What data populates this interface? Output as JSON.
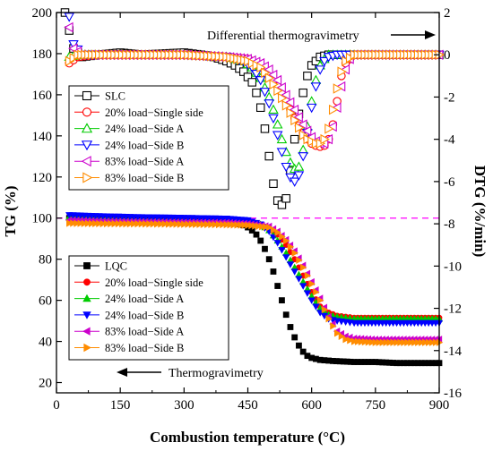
{
  "chart_data": {
    "type": "scatter",
    "xlabel": "Combustion temperature (°C)",
    "ylabel_left": "TG (%)",
    "ylabel_right": "DTG (%/min)",
    "xlim": [
      0,
      900
    ],
    "ylim_left": [
      15,
      200
    ],
    "ylim_right": [
      -16,
      2
    ],
    "x_ticks": [
      "0",
      "150",
      "300",
      "450",
      "600",
      "750",
      "900"
    ],
    "y_left_ticks": [
      "20",
      "40",
      "60",
      "80",
      "100",
      "120",
      "140",
      "160",
      "180",
      "200"
    ],
    "y_right_ticks": [
      "-16",
      "-14",
      "-12",
      "-10",
      "-8",
      "-6",
      "-4",
      "-2",
      "0",
      "2"
    ],
    "grid": false,
    "reference_line": {
      "axis": "left",
      "value": 100,
      "color": "#ff00ff",
      "style": "dashed"
    },
    "annotations": [
      {
        "text": "Differential thermogravimetry",
        "arrow": "right"
      },
      {
        "text": "Thermogravimetry",
        "arrow": "left"
      }
    ],
    "legend_dtg": {
      "placement": "upper-left",
      "entries": [
        {
          "label": "SLC",
          "color": "#000000",
          "marker": "square-open"
        },
        {
          "label": "20% load−Single side",
          "color": "#ff0000",
          "marker": "circle-open"
        },
        {
          "label": "24% load−Side A",
          "color": "#00cc00",
          "marker": "triangle-up-open"
        },
        {
          "label": "24% load−Side B",
          "color": "#0000ff",
          "marker": "triangle-down-open"
        },
        {
          "label": "83% load−Side A",
          "color": "#cc00cc",
          "marker": "triangle-left-open"
        },
        {
          "label": "83% load−Side B",
          "color": "#ff8c00",
          "marker": "triangle-right-open"
        }
      ]
    },
    "legend_tg": {
      "placement": "lower-left",
      "entries": [
        {
          "label": "LQC",
          "color": "#000000",
          "marker": "square-filled"
        },
        {
          "label": "20% load−Single side",
          "color": "#ff0000",
          "marker": "circle-filled"
        },
        {
          "label": "24% load−Side A",
          "color": "#00cc00",
          "marker": "triangle-up-filled"
        },
        {
          "label": "24% load−Side B",
          "color": "#0000ff",
          "marker": "triangle-down-filled"
        },
        {
          "label": "83% load−Side A",
          "color": "#cc00cc",
          "marker": "triangle-left-filled"
        },
        {
          "label": "83% load−Side B",
          "color": "#ff8c00",
          "marker": "triangle-right-filled"
        }
      ]
    },
    "series": [
      {
        "group": "TG",
        "axis": "left",
        "color": "#000000",
        "marker": "square-filled",
        "x": [
          30,
          100,
          200,
          300,
          350,
          400,
          420,
          440,
          450,
          460,
          470,
          480,
          490,
          500,
          510,
          520,
          530,
          540,
          550,
          560,
          570,
          580,
          590,
          600,
          620,
          650,
          700,
          750,
          800,
          850,
          900
        ],
        "y": [
          100,
          99.5,
          99,
          99,
          99.3,
          98,
          97.5,
          96.5,
          95.5,
          94,
          92,
          89,
          85,
          80,
          74,
          67,
          60,
          53,
          47,
          42,
          38,
          35,
          33,
          32,
          31,
          30.5,
          30,
          30,
          29.5,
          29.5,
          29.5
        ]
      },
      {
        "group": "TG",
        "axis": "left",
        "color": "#ff0000",
        "marker": "circle-filled",
        "x": [
          30,
          100,
          200,
          300,
          400,
          450,
          480,
          500,
          520,
          540,
          560,
          580,
          600,
          620,
          640,
          660,
          680,
          700,
          750,
          800,
          850,
          900
        ],
        "y": [
          99.5,
          99,
          98.5,
          98.2,
          98,
          97.5,
          96.5,
          95,
          92,
          87,
          80,
          72,
          64,
          57,
          54,
          52.5,
          52,
          51.5,
          51.5,
          51.5,
          51.5,
          51.5
        ]
      },
      {
        "group": "TG",
        "axis": "left",
        "color": "#00cc00",
        "marker": "triangle-up-filled",
        "x": [
          30,
          100,
          200,
          300,
          400,
          450,
          480,
          500,
          520,
          540,
          560,
          580,
          600,
          620,
          640,
          660,
          680,
          700,
          750,
          800,
          850,
          900
        ],
        "y": [
          100.5,
          100,
          99.5,
          99.2,
          98.8,
          98.3,
          97,
          94,
          89,
          83,
          76,
          69,
          62,
          56,
          53,
          52,
          51.5,
          51,
          51,
          51,
          51,
          51
        ]
      },
      {
        "group": "TG",
        "axis": "left",
        "color": "#0000ff",
        "marker": "triangle-down-filled",
        "x": [
          30,
          100,
          200,
          300,
          400,
          450,
          480,
          500,
          520,
          540,
          560,
          580,
          600,
          620,
          640,
          660,
          680,
          700,
          750,
          800,
          850,
          900
        ],
        "y": [
          101.5,
          101,
          100.5,
          100.2,
          99.8,
          99,
          97,
          93.5,
          88,
          81,
          74,
          67,
          60,
          54,
          51,
          50,
          49.5,
          49,
          49,
          49,
          49,
          49
        ]
      },
      {
        "group": "TG",
        "axis": "left",
        "color": "#cc00cc",
        "marker": "triangle-left-filled",
        "x": [
          30,
          100,
          200,
          300,
          400,
          450,
          500,
          520,
          540,
          560,
          580,
          600,
          620,
          640,
          660,
          680,
          700,
          750,
          800,
          850,
          900
        ],
        "y": [
          99,
          98.5,
          98.2,
          98,
          97.8,
          97.2,
          96,
          93.5,
          89.5,
          84,
          77,
          69,
          61,
          52,
          45,
          42.5,
          41.5,
          41,
          41,
          41,
          41
        ]
      },
      {
        "group": "TG",
        "axis": "left",
        "color": "#ff8c00",
        "marker": "triangle-right-filled",
        "x": [
          30,
          100,
          200,
          300,
          400,
          450,
          500,
          520,
          540,
          560,
          580,
          600,
          620,
          640,
          660,
          680,
          700,
          750,
          800,
          850,
          900
        ],
        "y": [
          97.5,
          97.3,
          97.2,
          97,
          96.8,
          96.5,
          95.5,
          93,
          89,
          83,
          76,
          68,
          60,
          51,
          44,
          41,
          40,
          39.5,
          39.5,
          39.5,
          39.5
        ]
      },
      {
        "group": "DTG",
        "axis": "right",
        "color": "#000000",
        "marker": "square-open",
        "x": [
          20,
          40,
          60,
          100,
          150,
          200,
          250,
          300,
          340,
          370,
          400,
          420,
          440,
          460,
          470,
          480,
          490,
          500,
          510,
          520,
          530,
          540,
          550,
          560,
          570,
          580,
          590,
          600,
          610,
          620,
          640,
          660,
          700,
          750,
          800,
          850,
          900
        ],
        "y": [
          2,
          0.3,
          -0.1,
          0,
          0.1,
          0,
          0.05,
          0.1,
          0,
          -0.1,
          -0.3,
          -0.5,
          -0.8,
          -1.3,
          -1.8,
          -2.5,
          -3.5,
          -4.8,
          -6.1,
          -6.9,
          -7.1,
          -6.8,
          -5.5,
          -4,
          -2.8,
          -1.8,
          -1,
          -0.5,
          -0.3,
          -0.1,
          0,
          0,
          0,
          0,
          0,
          0,
          0
        ]
      },
      {
        "group": "DTG",
        "axis": "right",
        "color": "#ff0000",
        "marker": "circle-open",
        "x": [
          30,
          50,
          100,
          200,
          300,
          400,
          450,
          480,
          500,
          520,
          540,
          560,
          580,
          590,
          600,
          610,
          620,
          630,
          640,
          650,
          660,
          670,
          680,
          700,
          750,
          800,
          850,
          900
        ],
        "y": [
          -0.4,
          -0.1,
          0,
          0,
          0,
          -0.1,
          -0.2,
          -0.5,
          -0.9,
          -1.5,
          -2.2,
          -3,
          -3.7,
          -4,
          -4.2,
          -4.3,
          -4.35,
          -4.3,
          -4,
          -3.3,
          -2.2,
          -1,
          -0.4,
          0,
          0,
          0,
          0,
          0
        ]
      },
      {
        "group": "DTG",
        "axis": "right",
        "color": "#00cc00",
        "marker": "triangle-up-open",
        "x": [
          30,
          50,
          100,
          200,
          300,
          400,
          440,
          460,
          480,
          500,
          510,
          520,
          530,
          540,
          550,
          560,
          570,
          580,
          590,
          600,
          610,
          620,
          630,
          640,
          660,
          700,
          750,
          800,
          850,
          900
        ],
        "y": [
          -0.1,
          0,
          0,
          0,
          0,
          -0.1,
          -0.3,
          -0.6,
          -1.1,
          -2,
          -2.6,
          -3.3,
          -4,
          -4.6,
          -5.1,
          -5.4,
          -5.3,
          -4.5,
          -3.4,
          -2.2,
          -1.2,
          -0.5,
          -0.2,
          0,
          0,
          0,
          0,
          0,
          0,
          0
        ]
      },
      {
        "group": "DTG",
        "axis": "right",
        "color": "#0000ff",
        "marker": "triangle-down-open",
        "x": [
          30,
          40,
          60,
          100,
          200,
          300,
          400,
          440,
          460,
          480,
          500,
          510,
          520,
          530,
          540,
          550,
          560,
          570,
          580,
          590,
          600,
          610,
          620,
          630,
          640,
          660,
          700,
          750,
          800,
          850,
          900
        ],
        "y": [
          1.8,
          0.5,
          0,
          0,
          0,
          0,
          -0.1,
          -0.3,
          -0.6,
          -1.2,
          -2.3,
          -3,
          -3.8,
          -4.6,
          -5.3,
          -5.8,
          -6,
          -5.7,
          -4.8,
          -3.7,
          -2.5,
          -1.5,
          -0.7,
          -0.3,
          -0.1,
          0,
          0,
          0,
          0,
          0,
          0
        ]
      },
      {
        "group": "DTG",
        "axis": "right",
        "color": "#cc00cc",
        "marker": "triangle-left-open",
        "x": [
          30,
          40,
          60,
          100,
          200,
          300,
          400,
          450,
          480,
          500,
          520,
          540,
          560,
          580,
          590,
          600,
          610,
          620,
          630,
          640,
          650,
          660,
          670,
          680,
          690,
          700,
          750,
          800,
          850,
          900
        ],
        "y": [
          1.3,
          0.3,
          0,
          0,
          0,
          0,
          -0.1,
          -0.2,
          -0.4,
          -0.7,
          -1.2,
          -1.9,
          -2.6,
          -3.3,
          -3.6,
          -3.9,
          -4.1,
          -4.2,
          -4.2,
          -4,
          -3.4,
          -2.5,
          -1.5,
          -0.7,
          -0.2,
          0,
          0,
          0,
          0,
          0
        ]
      },
      {
        "group": "DTG",
        "axis": "right",
        "color": "#ff8c00",
        "marker": "triangle-right-open",
        "x": [
          30,
          50,
          100,
          200,
          300,
          400,
          450,
          480,
          500,
          520,
          540,
          560,
          580,
          590,
          600,
          610,
          620,
          630,
          640,
          650,
          660,
          670,
          680,
          700,
          750,
          800,
          850,
          900
        ],
        "y": [
          -0.3,
          0,
          0,
          0,
          0,
          -0.1,
          -0.3,
          -0.6,
          -1.1,
          -1.7,
          -2.4,
          -3.1,
          -3.8,
          -4,
          -4.1,
          -4.2,
          -4.2,
          -4,
          -3.5,
          -2.6,
          -1.6,
          -0.8,
          -0.3,
          0,
          0,
          0,
          0,
          0
        ]
      }
    ]
  }
}
